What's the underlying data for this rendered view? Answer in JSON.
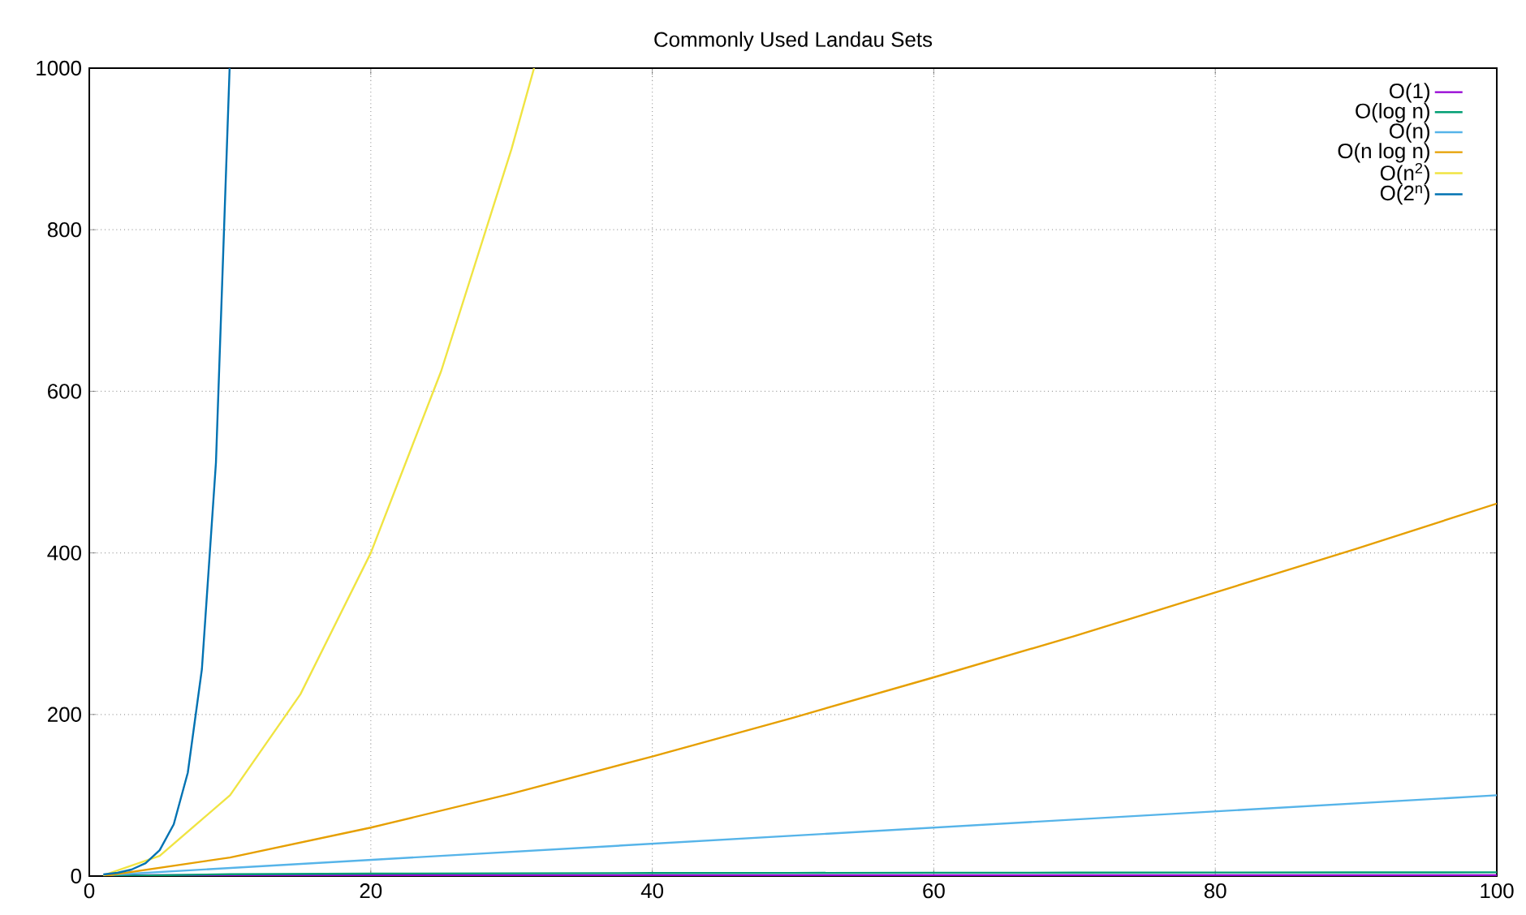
{
  "chart_data": {
    "type": "line",
    "title": "Commonly Used Landau Sets",
    "xlim": [
      0,
      100
    ],
    "ylim": [
      0,
      1000
    ],
    "xticks": [
      0,
      20,
      40,
      60,
      80,
      100
    ],
    "yticks": [
      0,
      200,
      400,
      600,
      800,
      1000
    ],
    "grid": true,
    "legend": "top right",
    "marker": "none",
    "line_style": "solid",
    "series": [
      {
        "name": "O(1)",
        "color": "#9400d3",
        "x": [
          1,
          100
        ],
        "values": [
          1,
          1
        ]
      },
      {
        "name": "O(log n)",
        "color": "#009e73",
        "x": [
          1,
          10,
          20,
          30,
          40,
          50,
          60,
          70,
          80,
          90,
          100
        ],
        "values": [
          0,
          2.3,
          3.0,
          3.4,
          3.7,
          3.9,
          4.1,
          4.2,
          4.4,
          4.5,
          4.6
        ]
      },
      {
        "name": "O(n)",
        "color": "#56b4e9",
        "x": [
          1,
          100
        ],
        "values": [
          1,
          100
        ]
      },
      {
        "name": "O(n log n)",
        "color": "#e69f00",
        "x": [
          1,
          10,
          20,
          30,
          40,
          50,
          60,
          70,
          80,
          90,
          100
        ],
        "values": [
          0,
          23,
          60,
          102,
          148,
          196,
          246,
          297,
          351,
          405,
          461
        ]
      },
      {
        "name": "O(n$^{2}$)",
        "color": "#f0e442",
        "x": [
          1,
          5,
          10,
          15,
          20,
          25,
          30,
          31.6
        ],
        "values": [
          1,
          25,
          100,
          225,
          400,
          625,
          900,
          1000
        ]
      },
      {
        "name": "O(2$^{n}$)",
        "color": "#0072b2",
        "x": [
          1,
          2,
          3,
          4,
          5,
          6,
          7,
          8,
          9,
          9.97
        ],
        "values": [
          2,
          4,
          8,
          16,
          32,
          64,
          128,
          256,
          512,
          1000
        ]
      }
    ]
  }
}
